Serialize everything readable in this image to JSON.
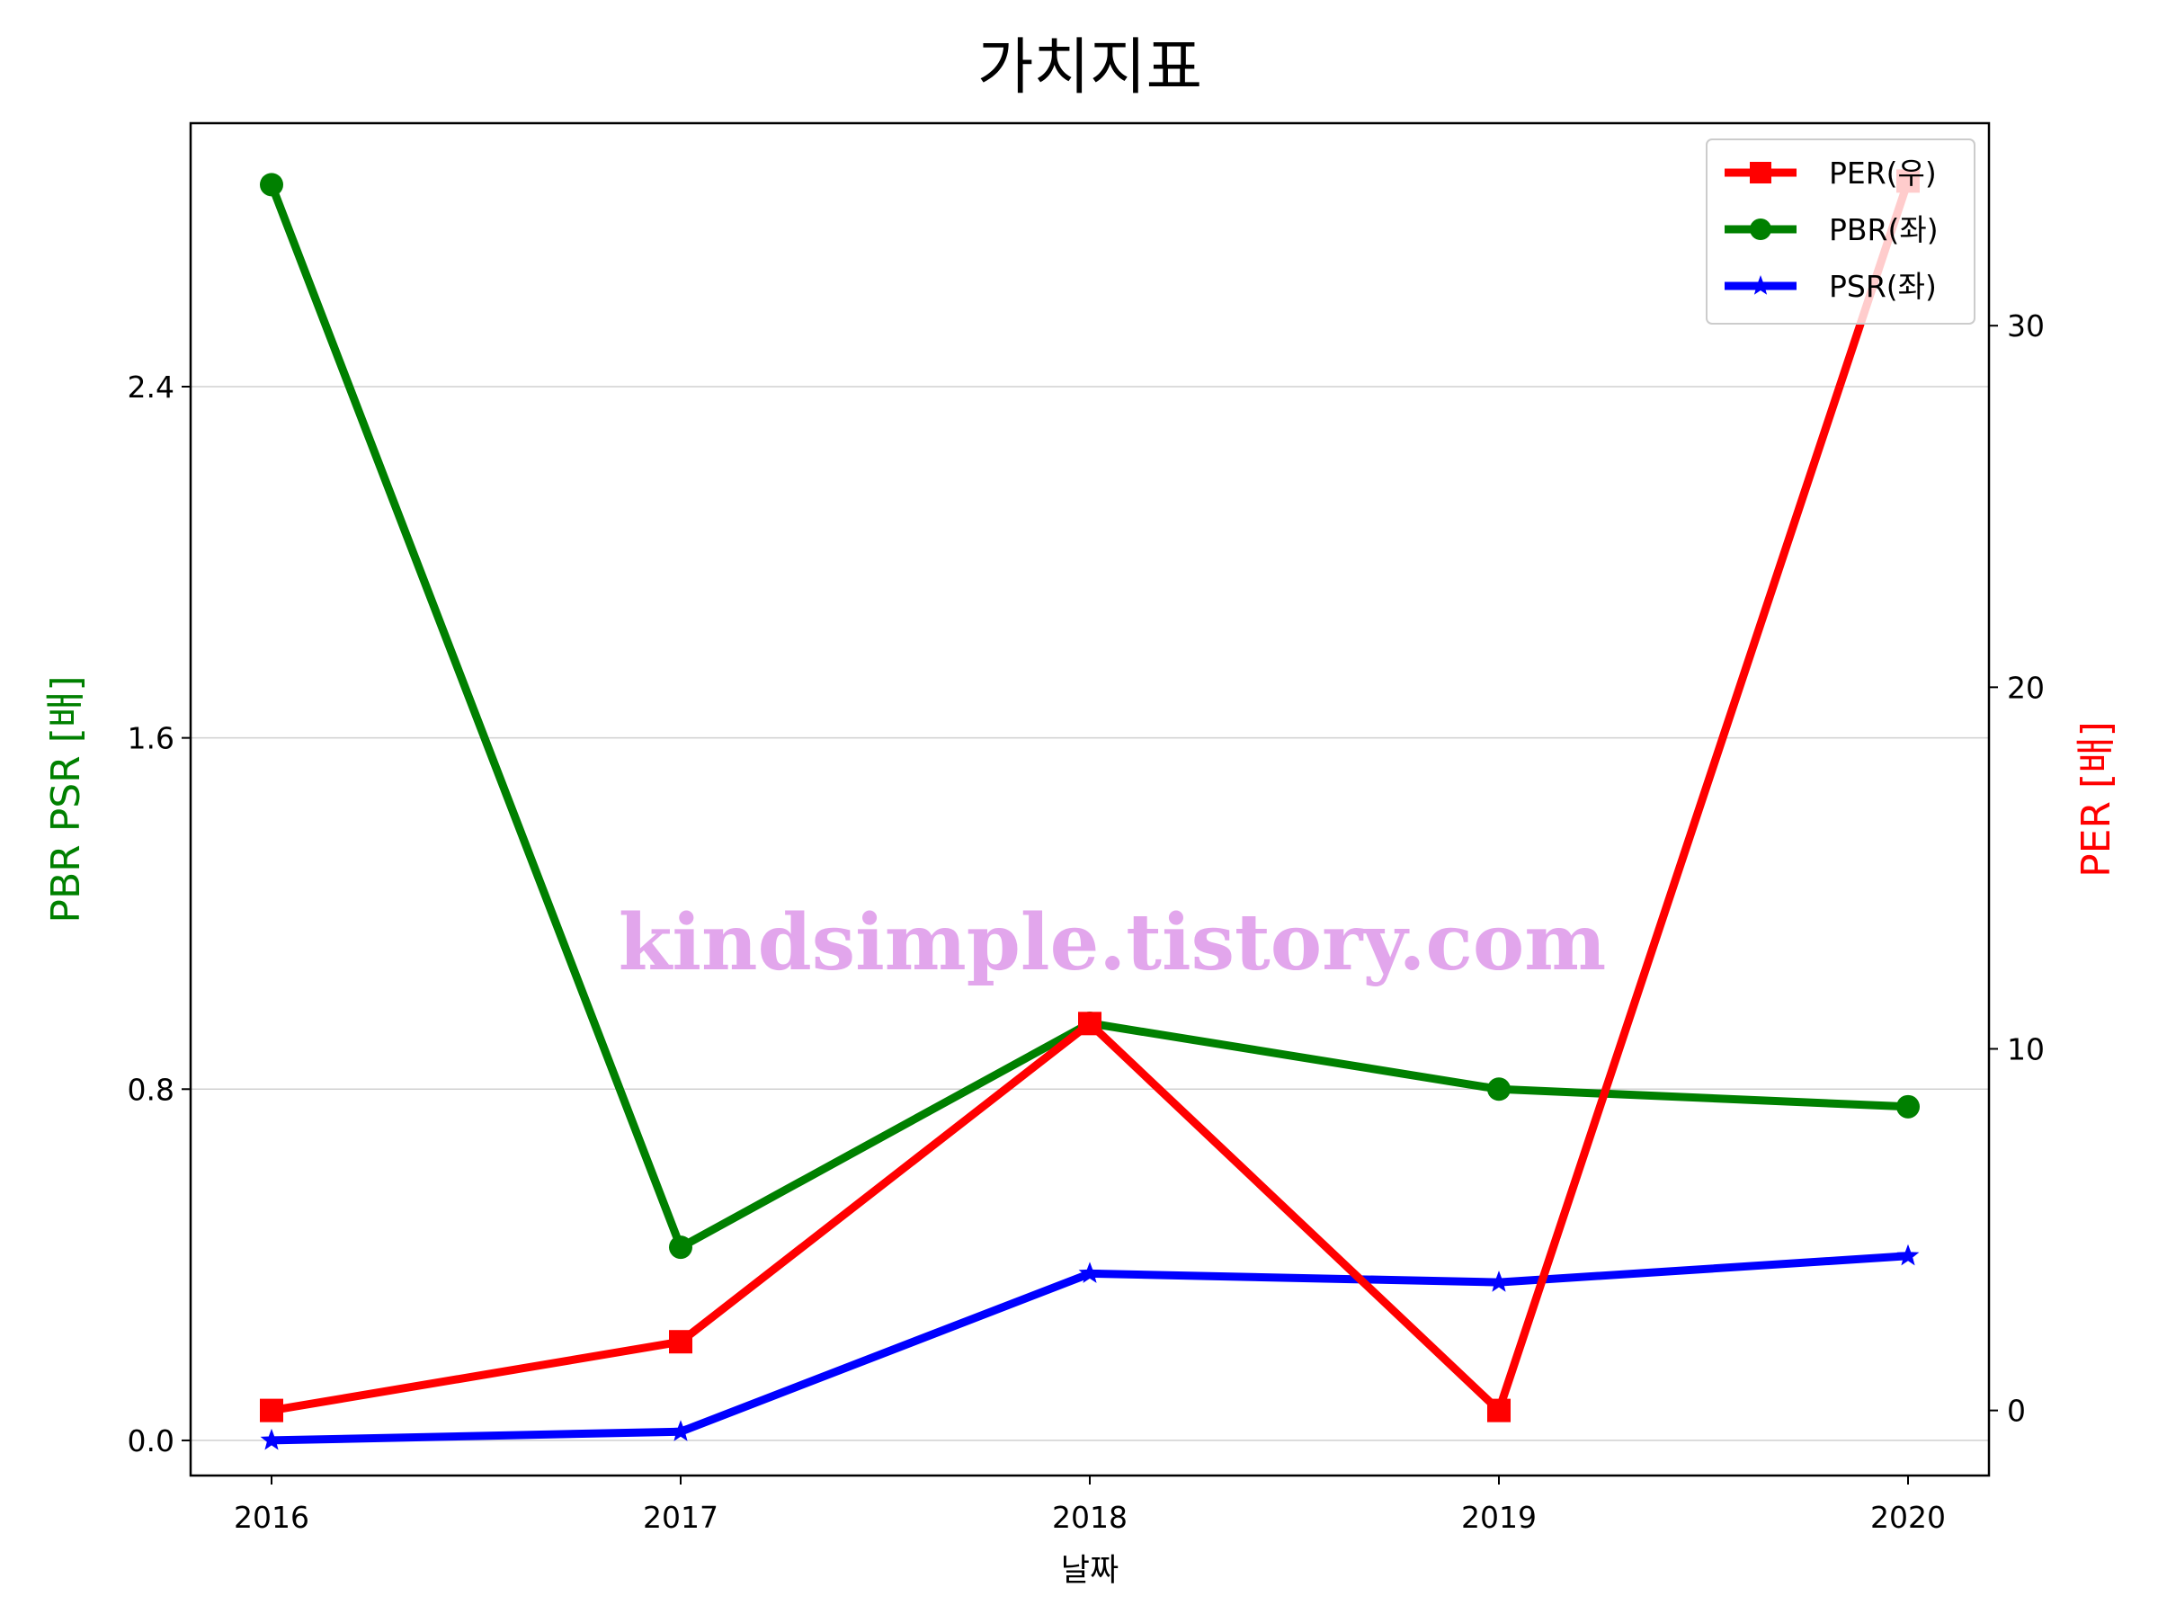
{
  "chart_data": {
    "type": "line",
    "title": "가치지표",
    "xlabel": "날짜",
    "ylabel_left": "PBR PSR [배]",
    "ylabel_right": "PER [배]",
    "categories": [
      "2016",
      "2017",
      "2018",
      "2019",
      "2020"
    ],
    "ylim_left": [
      -0.08,
      3.0
    ],
    "ylim_right": [
      -1.8,
      35.6
    ],
    "yticks_left": [
      "0.0",
      "0.8",
      "1.6",
      "2.4"
    ],
    "yticks_right": [
      "0",
      "10",
      "20",
      "30"
    ],
    "grid": "horizontal (left axis)",
    "legend_position": "top-right",
    "series": [
      {
        "name": "PER(우)",
        "axis": "right",
        "color": "#ff0000",
        "marker": "square",
        "values": [
          0.0,
          1.9,
          10.7,
          0.0,
          34.0
        ]
      },
      {
        "name": "PBR(좌)",
        "axis": "left",
        "color": "#008000",
        "marker": "circle",
        "values": [
          2.86,
          0.44,
          0.95,
          0.8,
          0.76
        ]
      },
      {
        "name": "PSR(좌)",
        "axis": "left",
        "color": "#0000ff",
        "marker": "star",
        "values": [
          0.0,
          0.02,
          0.38,
          0.36,
          0.42
        ]
      }
    ]
  },
  "watermark": "kindsimple.tistory.com"
}
